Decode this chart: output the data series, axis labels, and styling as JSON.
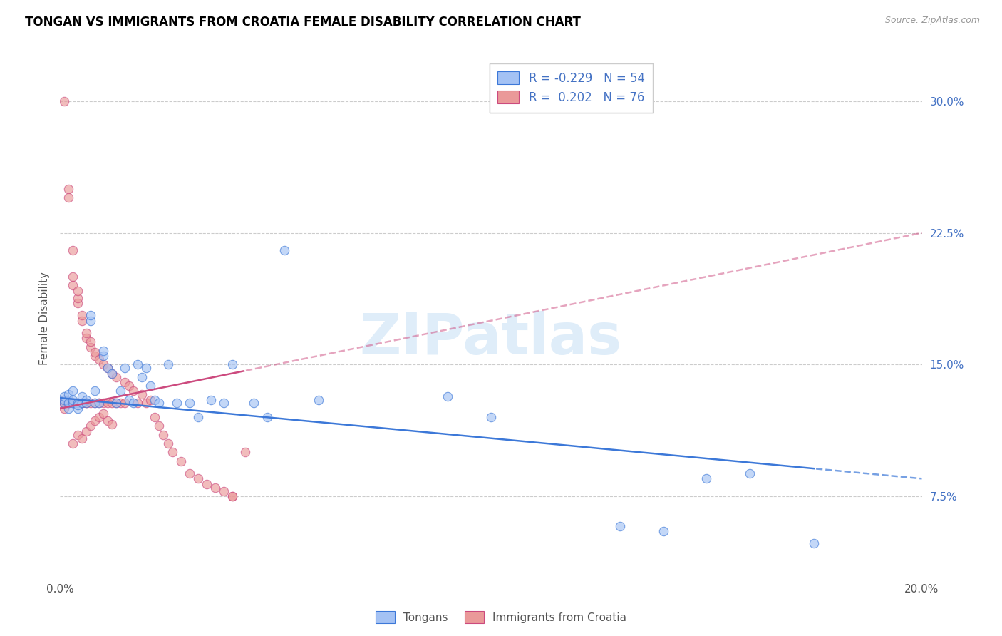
{
  "title": "TONGAN VS IMMIGRANTS FROM CROATIA FEMALE DISABILITY CORRELATION CHART",
  "source": "Source: ZipAtlas.com",
  "ylabel": "Female Disability",
  "x_min": 0.0,
  "x_max": 0.2,
  "y_min": 0.028,
  "y_max": 0.325,
  "y_ticks_right": [
    0.075,
    0.15,
    0.225,
    0.3
  ],
  "y_tick_labels_right": [
    "7.5%",
    "15.0%",
    "22.5%",
    "30.0%"
  ],
  "x_ticks": [
    0.0,
    0.05,
    0.1,
    0.15,
    0.2
  ],
  "x_tick_labels": [
    "0.0%",
    "",
    "",
    "",
    "20.0%"
  ],
  "blue_color": "#a4c2f4",
  "blue_edge_color": "#3c78d8",
  "pink_color": "#ea9999",
  "pink_edge_color": "#cc4a7e",
  "blue_line_color": "#3c78d8",
  "pink_line_color": "#cc4a7e",
  "blue_R": -0.229,
  "blue_N": 54,
  "pink_R": 0.202,
  "pink_N": 76,
  "watermark_text": "ZIPatlas",
  "grid_color": "#cccccc",
  "title_color": "#000000",
  "source_color": "#999999",
  "right_tick_color": "#4472c4",
  "scatter_size": 80,
  "scatter_alpha": 0.65,
  "blue_line_intercept": 0.131,
  "blue_line_slope": -0.228,
  "pink_line_intercept": 0.124,
  "pink_line_slope": 0.54,
  "blue_x": [
    0.001,
    0.001,
    0.001,
    0.002,
    0.002,
    0.002,
    0.003,
    0.003,
    0.003,
    0.004,
    0.004,
    0.004,
    0.005,
    0.005,
    0.006,
    0.006,
    0.007,
    0.007,
    0.008,
    0.008,
    0.009,
    0.01,
    0.01,
    0.011,
    0.012,
    0.013,
    0.014,
    0.015,
    0.016,
    0.017,
    0.018,
    0.019,
    0.02,
    0.021,
    0.022,
    0.023,
    0.025,
    0.027,
    0.03,
    0.032,
    0.035,
    0.038,
    0.04,
    0.045,
    0.048,
    0.052,
    0.06,
    0.09,
    0.1,
    0.13,
    0.14,
    0.15,
    0.16,
    0.175
  ],
  "blue_y": [
    0.128,
    0.13,
    0.132,
    0.125,
    0.128,
    0.133,
    0.128,
    0.135,
    0.13,
    0.128,
    0.125,
    0.127,
    0.128,
    0.132,
    0.13,
    0.128,
    0.175,
    0.178,
    0.128,
    0.135,
    0.128,
    0.155,
    0.158,
    0.148,
    0.145,
    0.128,
    0.135,
    0.148,
    0.13,
    0.128,
    0.15,
    0.143,
    0.148,
    0.138,
    0.13,
    0.128,
    0.15,
    0.128,
    0.128,
    0.12,
    0.13,
    0.128,
    0.15,
    0.128,
    0.12,
    0.215,
    0.13,
    0.132,
    0.12,
    0.058,
    0.055,
    0.085,
    0.088,
    0.048
  ],
  "pink_x": [
    0.001,
    0.001,
    0.001,
    0.001,
    0.001,
    0.002,
    0.002,
    0.002,
    0.002,
    0.002,
    0.003,
    0.003,
    0.003,
    0.003,
    0.003,
    0.004,
    0.004,
    0.004,
    0.004,
    0.005,
    0.005,
    0.005,
    0.005,
    0.006,
    0.006,
    0.006,
    0.006,
    0.007,
    0.007,
    0.007,
    0.008,
    0.008,
    0.008,
    0.009,
    0.009,
    0.01,
    0.01,
    0.011,
    0.011,
    0.012,
    0.012,
    0.013,
    0.013,
    0.014,
    0.015,
    0.015,
    0.016,
    0.017,
    0.018,
    0.019,
    0.02,
    0.021,
    0.022,
    0.023,
    0.024,
    0.025,
    0.026,
    0.028,
    0.03,
    0.032,
    0.034,
    0.036,
    0.038,
    0.04,
    0.043,
    0.003,
    0.004,
    0.005,
    0.006,
    0.007,
    0.008,
    0.009,
    0.01,
    0.011,
    0.012,
    0.04
  ],
  "pink_y": [
    0.128,
    0.13,
    0.125,
    0.3,
    0.128,
    0.128,
    0.25,
    0.245,
    0.128,
    0.128,
    0.128,
    0.2,
    0.128,
    0.195,
    0.215,
    0.128,
    0.185,
    0.188,
    0.192,
    0.128,
    0.175,
    0.178,
    0.128,
    0.128,
    0.165,
    0.168,
    0.128,
    0.128,
    0.16,
    0.163,
    0.128,
    0.155,
    0.157,
    0.128,
    0.153,
    0.128,
    0.15,
    0.128,
    0.148,
    0.128,
    0.145,
    0.128,
    0.143,
    0.128,
    0.14,
    0.128,
    0.138,
    0.135,
    0.128,
    0.133,
    0.128,
    0.13,
    0.12,
    0.115,
    0.11,
    0.105,
    0.1,
    0.095,
    0.088,
    0.085,
    0.082,
    0.08,
    0.078,
    0.075,
    0.1,
    0.105,
    0.11,
    0.108,
    0.112,
    0.115,
    0.118,
    0.12,
    0.122,
    0.118,
    0.116,
    0.075
  ]
}
